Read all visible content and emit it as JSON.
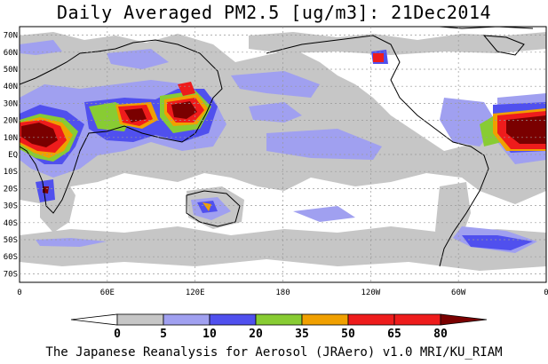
{
  "title": "Daily Averaged PM2.5 [ug/m3]: 21Dec2014",
  "footer": "The Japanese Reanalysis for Aerosol (JRAero) v1.0 MRI/KU_RIAM",
  "y_axis": {
    "labels": [
      "70N",
      "60N",
      "50N",
      "40N",
      "30N",
      "20N",
      "10N",
      "EQ",
      "10S",
      "20S",
      "30S",
      "40S",
      "50S",
      "60S",
      "70S"
    ]
  },
  "x_axis": {
    "labels": [
      "0",
      "60E",
      "120E",
      "180",
      "120W",
      "60W",
      "0"
    ]
  },
  "colorbar": {
    "colors": [
      "#ffffff",
      "#c6c6c6",
      "#a0a0f0",
      "#5050ee",
      "#88cc33",
      "#f0a000",
      "#ee1c1c",
      "#7a0000"
    ],
    "tick_labels": [
      "0",
      "5",
      "10",
      "20",
      "35",
      "50",
      "65",
      "80"
    ]
  }
}
